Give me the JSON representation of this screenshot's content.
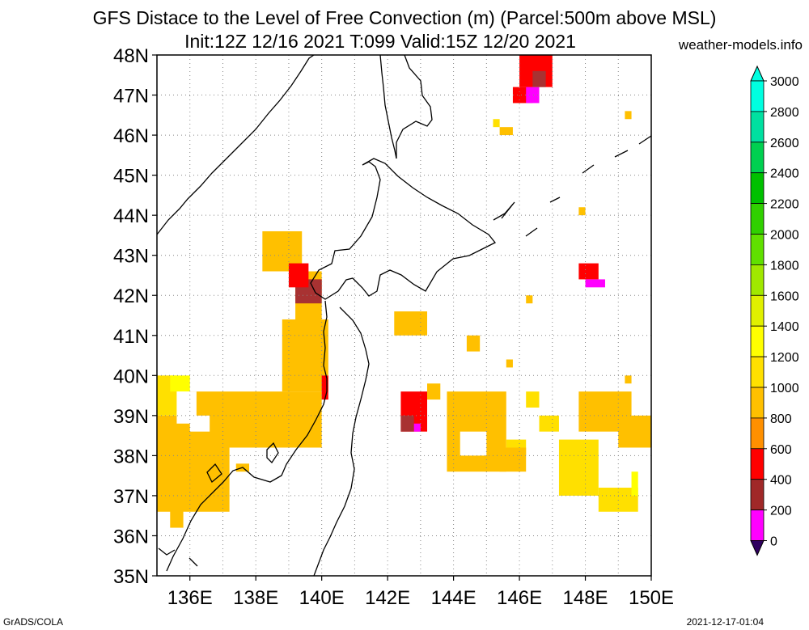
{
  "title_line1": "GFS Distace to the Level of Free Convection (m) (Parcel:500m above MSL)",
  "title_line2": "Init:12Z 12/16 2021 T:099 Valid:15Z 12/20 2021",
  "site": "weather-models.info",
  "footer_left": "GrADS/COLA",
  "footer_right": "2021-12-17-01:04",
  "lat_labels": [
    "48N",
    "47N",
    "46N",
    "45N",
    "44N",
    "43N",
    "42N",
    "41N",
    "40N",
    "39N",
    "38N",
    "37N",
    "36N",
    "35N"
  ],
  "lon_labels": [
    "136E",
    "138E",
    "140E",
    "142E",
    "144E",
    "146E",
    "148E",
    "150E"
  ],
  "colorbar": {
    "labels": [
      "3000",
      "2800",
      "2600",
      "2400",
      "2200",
      "2000",
      "1800",
      "1600",
      "1400",
      "1200",
      "1000",
      "800",
      "600",
      "400",
      "200",
      "0"
    ],
    "colors": [
      "#00ffe0",
      "#00e0a0",
      "#00d050",
      "#00c000",
      "#30d000",
      "#60e000",
      "#a0e800",
      "#e0f000",
      "#ffff00",
      "#ffe000",
      "#ffc000",
      "#ff9000",
      "#ff0000",
      "#a02828",
      "#ff00ff",
      "#400080",
      "#300060"
    ]
  },
  "map": {
    "lon_range": [
      135,
      150
    ],
    "lat_range": [
      35,
      48
    ],
    "cell_deg": 0.25,
    "colors": {
      "1": "#ff0000",
      "2": "#a83232",
      "3": "#ff00ff",
      "4": "#ffa000",
      "5": "#ffc000",
      "6": "#ffe000",
      "7": "#ffff00"
    },
    "patches": [
      {
        "lon": [
          135.0,
          137.2
        ],
        "lat": [
          36.6,
          39.0
        ],
        "level": "5"
      },
      {
        "lon": [
          135.0,
          135.6
        ],
        "lat": [
          39.0,
          40.0
        ],
        "level": "6"
      },
      {
        "lon": [
          136.0,
          140.0
        ],
        "lat": [
          38.2,
          39.6
        ],
        "level": "5"
      },
      {
        "lon": [
          138.8,
          140.2
        ],
        "lat": [
          39.6,
          41.4
        ],
        "level": "5"
      },
      {
        "lon": [
          138.2,
          139.4
        ],
        "lat": [
          42.6,
          43.6
        ],
        "level": "5"
      },
      {
        "lon": [
          139.2,
          140.0
        ],
        "lat": [
          41.2,
          42.6
        ],
        "level": "5"
      },
      {
        "lon": [
          139.6,
          140.0
        ],
        "lat": [
          42.0,
          42.4
        ],
        "level": "1"
      },
      {
        "lon": [
          142.2,
          143.2
        ],
        "lat": [
          41.0,
          41.6
        ],
        "level": "5"
      },
      {
        "lon": [
          143.8,
          145.6
        ],
        "lat": [
          37.6,
          39.6
        ],
        "level": "5"
      },
      {
        "lon": [
          145.6,
          146.2
        ],
        "lat": [
          38.0,
          38.4
        ],
        "level": "6"
      },
      {
        "lon": [
          144.4,
          144.8
        ],
        "lat": [
          40.6,
          41.0
        ],
        "level": "5"
      },
      {
        "lon": [
          145.4,
          146.2
        ],
        "lat": [
          37.6,
          38.2
        ],
        "level": "5"
      },
      {
        "lon": [
          147.8,
          149.4
        ],
        "lat": [
          38.6,
          39.6
        ],
        "level": "5"
      },
      {
        "lon": [
          149.0,
          150.0
        ],
        "lat": [
          38.2,
          39.0
        ],
        "level": "5"
      },
      {
        "lon": [
          147.2,
          148.4
        ],
        "lat": [
          37.0,
          38.4
        ],
        "level": "6"
      },
      {
        "lon": [
          148.4,
          149.6
        ],
        "lat": [
          36.6,
          37.2
        ],
        "level": "6"
      },
      {
        "lon": [
          149.4,
          149.6
        ],
        "lat": [
          37.0,
          37.6
        ],
        "level": "7"
      },
      {
        "lon": [
          146.2,
          146.6
        ],
        "lat": [
          39.2,
          39.6
        ],
        "level": "6"
      },
      {
        "lon": [
          146.6,
          147.2
        ],
        "lat": [
          38.6,
          39.0
        ],
        "level": "6"
      },
      {
        "lon": [
          142.4,
          143.2
        ],
        "lat": [
          38.6,
          39.6
        ],
        "level": "1"
      },
      {
        "lon": [
          142.4,
          142.8
        ],
        "lat": [
          38.6,
          39.0
        ],
        "level": "2"
      },
      {
        "lon": [
          142.8,
          143.0
        ],
        "lat": [
          38.6,
          38.8
        ],
        "level": "3"
      },
      {
        "lon": [
          143.2,
          143.6
        ],
        "lat": [
          39.4,
          39.8
        ],
        "level": "5"
      },
      {
        "lon": [
          139.2,
          140.0
        ],
        "lat": [
          41.8,
          42.4
        ],
        "level": "2"
      },
      {
        "lon": [
          139.0,
          139.6
        ],
        "lat": [
          42.2,
          42.8
        ],
        "level": "1"
      },
      {
        "lon": [
          146.0,
          147.0
        ],
        "lat": [
          47.2,
          48.0
        ],
        "level": "1"
      },
      {
        "lon": [
          145.8,
          146.4
        ],
        "lat": [
          46.8,
          47.2
        ],
        "level": "1"
      },
      {
        "lon": [
          146.2,
          146.6
        ],
        "lat": [
          46.8,
          47.2
        ],
        "level": "3"
      },
      {
        "lon": [
          146.4,
          146.8
        ],
        "lat": [
          47.2,
          47.6
        ],
        "level": "2"
      },
      {
        "lon": [
          145.2,
          145.4
        ],
        "lat": [
          46.2,
          46.4
        ],
        "level": "6"
      },
      {
        "lon": [
          145.4,
          145.8
        ],
        "lat": [
          46.0,
          46.2
        ],
        "level": "5"
      },
      {
        "lon": [
          149.2,
          149.4
        ],
        "lat": [
          46.4,
          46.6
        ],
        "level": "5"
      },
      {
        "lon": [
          147.8,
          148.0
        ],
        "lat": [
          44.0,
          44.2
        ],
        "level": "5"
      },
      {
        "lon": [
          147.8,
          148.4
        ],
        "lat": [
          42.4,
          42.8
        ],
        "level": "1"
      },
      {
        "lon": [
          148.0,
          148.6
        ],
        "lat": [
          42.2,
          42.4
        ],
        "level": "3"
      },
      {
        "lon": [
          146.2,
          146.4
        ],
        "lat": [
          41.8,
          42.0
        ],
        "level": "5"
      },
      {
        "lon": [
          145.6,
          145.8
        ],
        "lat": [
          40.2,
          40.4
        ],
        "level": "5"
      },
      {
        "lon": [
          149.2,
          149.4
        ],
        "lat": [
          39.8,
          40.0
        ],
        "level": "5"
      },
      {
        "lon": [
          140.0,
          140.2
        ],
        "lat": [
          39.4,
          40.0
        ],
        "level": "1"
      },
      {
        "lon": [
          137.4,
          137.8
        ],
        "lat": [
          37.6,
          37.8
        ],
        "level": "5"
      },
      {
        "lon": [
          135.4,
          135.8
        ],
        "lat": [
          36.2,
          36.8
        ],
        "level": "5"
      },
      {
        "lon": [
          135.4,
          136.0
        ],
        "lat": [
          39.6,
          40.0
        ],
        "level": "7"
      }
    ],
    "holes": [
      {
        "lon": [
          135.6,
          136.2
        ],
        "lat": [
          38.8,
          39.6
        ]
      },
      {
        "lon": [
          136.0,
          136.6
        ],
        "lat": [
          38.6,
          39.0
        ]
      },
      {
        "lon": [
          144.2,
          145.0
        ],
        "lat": [
          38.0,
          38.6
        ]
      },
      {
        "lon": [
          137.8,
          138.6
        ],
        "lat": [
          37.4,
          38.0
        ]
      }
    ]
  }
}
